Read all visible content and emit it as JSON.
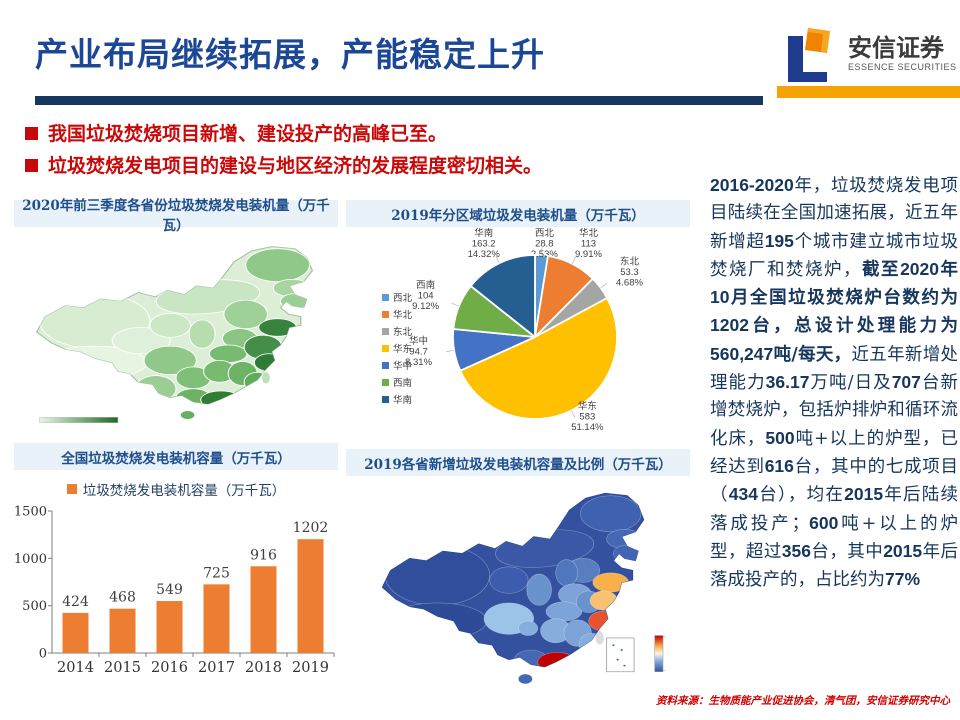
{
  "header": {
    "title": "产业布局继续拓展，产能稳定上升",
    "logo": {
      "name_cn": "安信证券",
      "name_en": "ESSENCE SECURITIES"
    }
  },
  "bullets": [
    "我国垃圾焚烧项目新增、建设投产的高峰已至。",
    "垃圾焚烧发电项目的建设与地区经济的发展程度密切相关。"
  ],
  "panels": {
    "map_green": {
      "title": "2020年前三季度各省份垃圾焚烧发电装机量（万千瓦）"
    },
    "pie": {
      "title": "2019年分区域垃圾发电装机量（万千瓦）"
    },
    "bar": {
      "title": "全国垃圾焚烧发电装机容量（万千瓦）"
    },
    "map_blue": {
      "title": "2019各省新增垃圾发电装机容量及比例（万千瓦）"
    }
  },
  "chart_data": [
    {
      "type": "pie",
      "title": "2019年分区域垃圾发电装机量（万千瓦）",
      "legend_position": "left",
      "start_angle_deg": -90,
      "series": [
        {
          "name": "西北",
          "value": 28.8,
          "pct": "2.53%",
          "color": "#5B9BD5"
        },
        {
          "name": "华北",
          "value": 113,
          "pct": "9.91%",
          "color": "#ED7D31"
        },
        {
          "name": "东北",
          "value": 53.3,
          "pct": "4.68%",
          "color": "#A5A5A5"
        },
        {
          "name": "华东",
          "value": 583,
          "pct": "51.14%",
          "color": "#FFC000"
        },
        {
          "name": "华中",
          "value": 94.7,
          "pct": "8.31%",
          "color": "#4472C4"
        },
        {
          "name": "西南",
          "value": 104,
          "pct": "9.12%",
          "color": "#70AD47"
        },
        {
          "name": "华南",
          "value": 163.2,
          "pct": "14.32%",
          "color": "#255E91"
        }
      ]
    },
    {
      "type": "bar",
      "title": "全国垃圾焚烧发电装机容量（万千瓦）",
      "legend": "垃圾焚烧发电装机容量（万千瓦）",
      "categories": [
        "2014",
        "2015",
        "2016",
        "2017",
        "2018",
        "2019"
      ],
      "values": [
        424,
        468,
        549,
        725,
        916,
        1202
      ],
      "ylim": [
        0,
        1500
      ],
      "yticks": [
        0,
        500,
        1000,
        1500
      ],
      "bar_color": "#ED7D31",
      "grid": false,
      "legend_position": "top"
    },
    {
      "type": "map",
      "title": "2020年前三季度各省份垃圾焚烧发电装机量（万千瓦）",
      "region": "China",
      "style": "green choropleth; darker green = higher installed capacity; east-coast provinces (Shandong, Jiangsu, Zhejiang, Guangdong) darkest",
      "legend": "horizontal light-to-dark green gradient bar, bottom left"
    },
    {
      "type": "map",
      "title": "2019各省新增垃圾发电装机容量及比例（万千瓦）",
      "region": "China",
      "style": "blue base choropleth; Shandong/Jiangsu orange, Zhejiang red-orange, Guangdong dark red, Sichuan light blue",
      "legend": "vertical red-to-blue colorbar and South China Sea inset box, bottom right"
    }
  ],
  "sidebar_text": {
    "segments": [
      {
        "text": "2016-2020年，垃圾焚烧发电项目陆续在全国加速拓展，近五年新增超195个城市建立城市垃圾焚烧厂和焚烧炉，",
        "bold": false
      },
      {
        "text": "截至2020年10月全国垃圾焚烧炉台数约为1202台，总设计处理能力为560,247吨/每天，",
        "bold": true
      },
      {
        "text": "近五年新增处理能力36.17万吨/日及707台新增焚烧炉，包括炉排炉和循环流化床，500吨+以上的炉型，已经达到616台，其中的七成项目（434台），均在2015年后陆续落成投产；600吨+以上的炉型，超过356台，其中2015年后落成投产的，占比约为77%",
        "bold": false
      }
    ]
  },
  "footer": {
    "source": "资料来源：生物质能产业促进协会，清气团，安信证券研究中心"
  },
  "colors": {
    "title_blue": "#1B4795",
    "rule_blue": "#17375E",
    "rule_orange": "#F5A300",
    "bullet_red": "#C90909",
    "panel_title_bg": "#E9F2F9",
    "panel_title_fg": "#1F4E8C",
    "sidebar_blue": "#17365D",
    "source_red": "#D40000"
  }
}
